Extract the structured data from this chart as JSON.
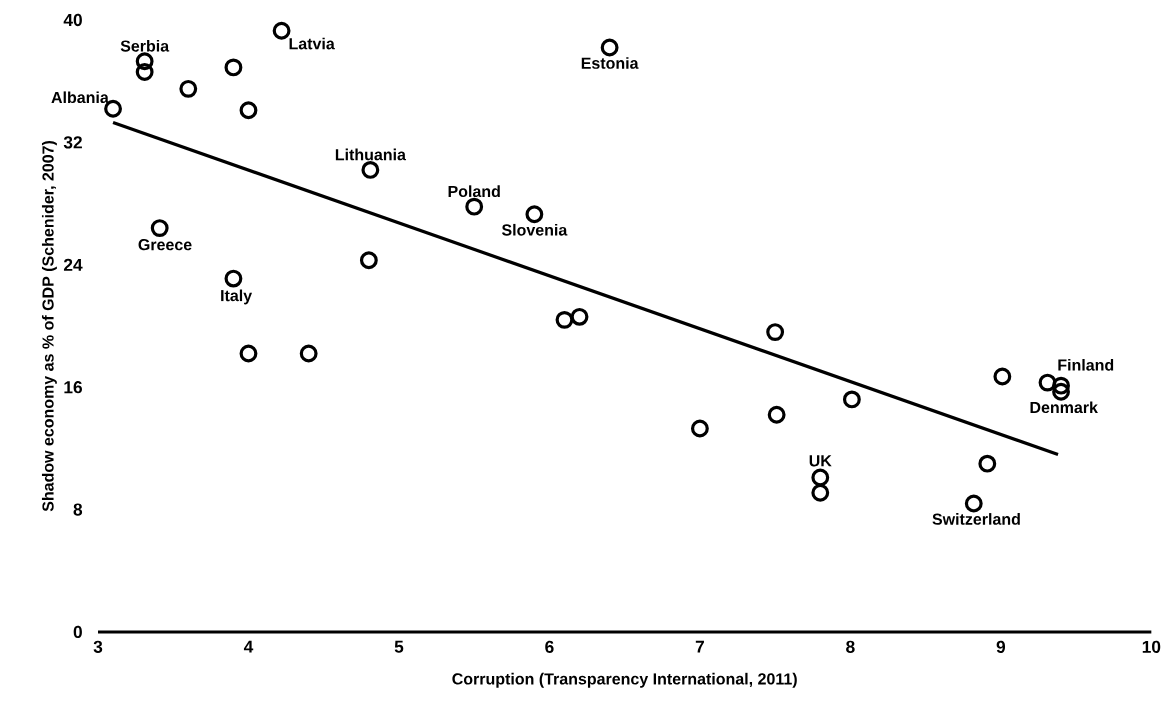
{
  "chart_data": {
    "type": "scatter",
    "xlabel": "Corruption (Transparency International, 2011)",
    "ylabel": "Shadow economy as % of GDP (Schenider, 2007)",
    "xlim": [
      3,
      10
    ],
    "ylim": [
      0,
      40
    ],
    "xticks": [
      3,
      4,
      5,
      6,
      7,
      8,
      9,
      10
    ],
    "yticks": [
      0,
      8,
      16,
      24,
      32,
      40
    ],
    "grid": false,
    "marker": "circle",
    "series": [
      {
        "color": "#000000",
        "x": [
          3.1,
          3.31,
          3.31,
          3.41,
          3.6,
          3.9,
          4.22,
          4.0,
          3.9,
          4.0,
          4.4,
          4.81,
          4.8,
          5.5,
          5.9,
          6.1,
          6.2,
          6.4,
          7.0,
          7.5,
          7.51,
          8.01,
          7.8,
          7.8,
          9.01,
          9.31,
          9.4,
          9.4,
          8.91,
          8.82
        ],
        "values": [
          34.2,
          37.3,
          36.6,
          26.4,
          35.5,
          36.9,
          39.3,
          34.1,
          23.1,
          18.2,
          18.2,
          30.2,
          24.3,
          27.8,
          27.3,
          20.4,
          20.6,
          38.2,
          13.3,
          19.6,
          14.2,
          15.2,
          10.1,
          9.1,
          16.7,
          16.3,
          16.1,
          15.7,
          11.0,
          8.4
        ]
      },
      {
        "type": "line",
        "color": "#000000",
        "marker": "none",
        "line_style": "solid",
        "x": [
          3.1,
          9.38
        ],
        "values": [
          33.3,
          11.6
        ]
      }
    ],
    "annotations": [
      {
        "text": "Albania",
        "x": 3.1,
        "y": 34.2
      },
      {
        "text": "Serbia",
        "x": 3.31,
        "y": 37.3
      },
      {
        "text": "Greece",
        "x": 3.41,
        "y": 26.4
      },
      {
        "text": "Latvia",
        "x": 4.22,
        "y": 39.3
      },
      {
        "text": "Italy",
        "x": 3.9,
        "y": 23.1
      },
      {
        "text": "Lithuania",
        "x": 4.81,
        "y": 30.2
      },
      {
        "text": "Poland",
        "x": 5.5,
        "y": 27.8
      },
      {
        "text": "Slovenia",
        "x": 5.9,
        "y": 27.3
      },
      {
        "text": "Estonia",
        "x": 6.4,
        "y": 38.2
      },
      {
        "text": "Finland",
        "x": 9.4,
        "y": 16.1
      },
      {
        "text": "Denmark",
        "x": 9.4,
        "y": 15.7
      },
      {
        "text": "UK",
        "x": 7.8,
        "y": 10.1
      },
      {
        "text": "Switzerland",
        "x": 8.82,
        "y": 8.4
      }
    ]
  }
}
